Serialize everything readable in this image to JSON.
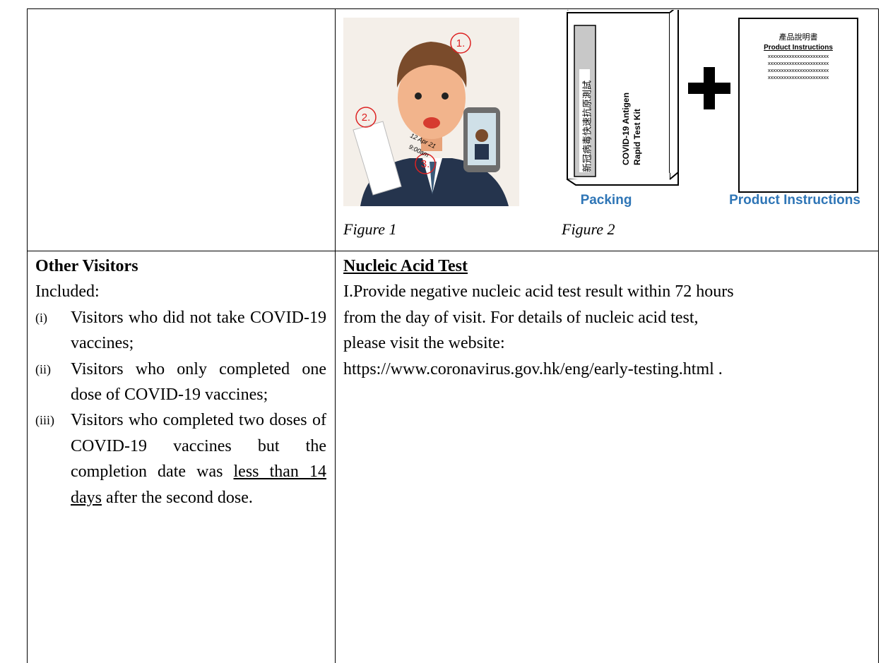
{
  "figures": {
    "figure_1": {
      "caption": "Figure 1",
      "markers": [
        "1.",
        "2.",
        "3."
      ],
      "date": "12 Apr 21",
      "time": "9:00am"
    },
    "figure_2": {
      "caption": "Figure 2",
      "box_chinese": "新冠病毒快速抗原測試",
      "box_title_1": "COVID-19 Antigen",
      "box_title_2": "Rapid Test Kit",
      "packing_label": "Packing",
      "doc_chinese": "產品說明書",
      "doc_title": "Product Instructions",
      "doc_lines": [
        "xxxxxxxxxxxxxxxxxxxxxxx",
        "xxxxxxxxxxxxxxxxxxxxxxx",
        "xxxxxxxxxxxxxxxxxxxxxxx",
        "xxxxxxxxxxxxxxxxxxxxxxx"
      ],
      "doc_label": "Product Instructions"
    }
  },
  "left": {
    "heading": "Other Visitors",
    "intro": "Included:",
    "items": [
      {
        "marker": "(i)",
        "text": "Visitors who did not take COVID-19 vaccines;"
      },
      {
        "marker": "(ii)",
        "text": "Visitors who only completed one dose of COVID-19 vaccines;"
      },
      {
        "marker": "(iii)",
        "text_before": "Visitors who completed two doses of COVID-19 vaccines but the completion date was",
        "underlined": "less than 14 days",
        "text_after": "after the second dose."
      }
    ]
  },
  "right": {
    "heading": "Nucleic Acid Test",
    "lines": [
      "I.Provide negative nucleic acid test result within 72 hours",
      "from the day of visit. For details of nucleic acid test,",
      "please visit the website:",
      "https://www.coronavirus.gov.hk/eng/early-testing.html ."
    ]
  }
}
